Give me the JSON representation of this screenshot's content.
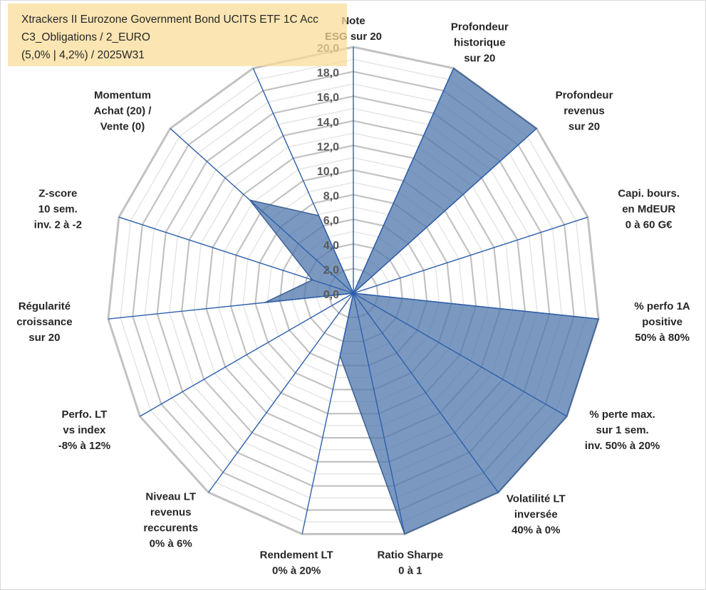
{
  "header": {
    "line1": "Xtrackers II Eurozone Government Bond UCITS ETF 1C Acc",
    "line2": "C3_Obligations / 2_EURO",
    "line3": "(5,0% | 4,2%) / 2025W31"
  },
  "chart_data": {
    "type": "radar",
    "rmin": 0,
    "rmax": 20,
    "tick_step": 2,
    "tick_labels": [
      "0,0",
      "2,0",
      "4,0",
      "6,0",
      "8,0",
      "10,0",
      "12,0",
      "14,0",
      "16,0",
      "18,0",
      "20,0"
    ],
    "axes": [
      {
        "label": [
          "Note",
          "ESG sur 20"
        ],
        "value": 0
      },
      {
        "label": [
          "Profondeur",
          "historique",
          "sur 20"
        ],
        "value": 20
      },
      {
        "label": [
          "Profondeur",
          "revenus",
          "sur 20"
        ],
        "value": 20
      },
      {
        "label": [
          "Capi. bours.",
          "en MdEUR",
          "0 à 60 G€"
        ],
        "value": 0
      },
      {
        "label": [
          "% perfo 1A",
          "positive",
          "50% à 80%"
        ],
        "value": 20
      },
      {
        "label": [
          "% perte max.",
          "sur 1 sem.",
          "inv. 50% à 20%"
        ],
        "value": 20
      },
      {
        "label": [
          "Volatilité LT",
          "inversée",
          "40% à 0%"
        ],
        "value": 20
      },
      {
        "label": [
          "Ratio Sharpe",
          "0 à 1"
        ],
        "value": 20
      },
      {
        "label": [
          "Rendement LT",
          "0% à 20%"
        ],
        "value": 5.2
      },
      {
        "label": [
          "Niveau LT",
          "revenus",
          "reccurents",
          "0% à 6%"
        ],
        "value": 0
      },
      {
        "label": [
          "Perfo. LT",
          "vs index",
          "-8% à 12%"
        ],
        "value": 0
      },
      {
        "label": [
          "Régularité",
          "croissance",
          "sur 20"
        ],
        "value": 7.2
      },
      {
        "label": [
          "Z-score",
          "10 sem.",
          "inv. 2 à -2"
        ],
        "value": 3.5
      },
      {
        "label": [
          "Momentum",
          "Achat (20) /",
          "Vente (0)"
        ],
        "value": 11.3
      },
      {
        "label": [],
        "value": 6.9
      }
    ],
    "colors": {
      "fill": "#4f77ab",
      "fill_opacity": 0.75,
      "outline": "#3a5f94",
      "spoke": "#2e5fac",
      "ring_major": "#c2c2c2",
      "ring_minor": "#e3e3e3"
    },
    "legend": "none"
  }
}
